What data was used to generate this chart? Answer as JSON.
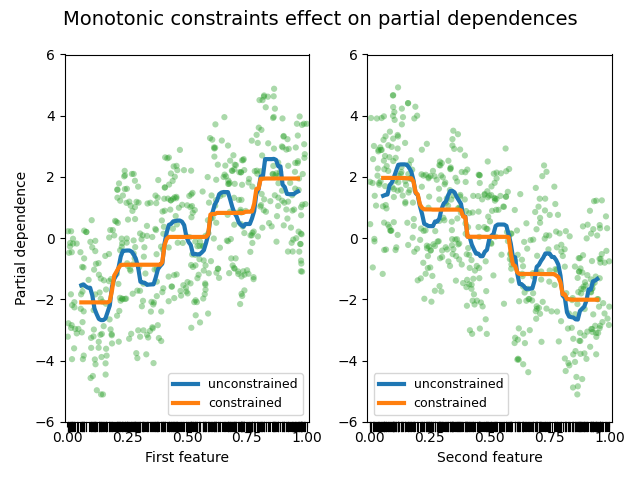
{
  "title": "Monotonic constraints effect on partial dependences",
  "xlabel_left": "First feature",
  "xlabel_right": "Second feature",
  "ylabel": "Partial dependence",
  "ylim": [
    -6,
    6
  ],
  "scatter_color": "#2ca02c",
  "scatter_alpha": 0.4,
  "scatter_size": 20,
  "unconstrained_color": "#1f77b4",
  "constrained_color": "#ff7f0e",
  "line_width": 3.0,
  "legend_unconstrained": "unconstrained",
  "legend_constrained": "constrained",
  "random_seed": 0,
  "n_samples": 500,
  "title_fontsize": 14,
  "figsize": [
    6.4,
    4.8
  ],
  "dpi": 100
}
